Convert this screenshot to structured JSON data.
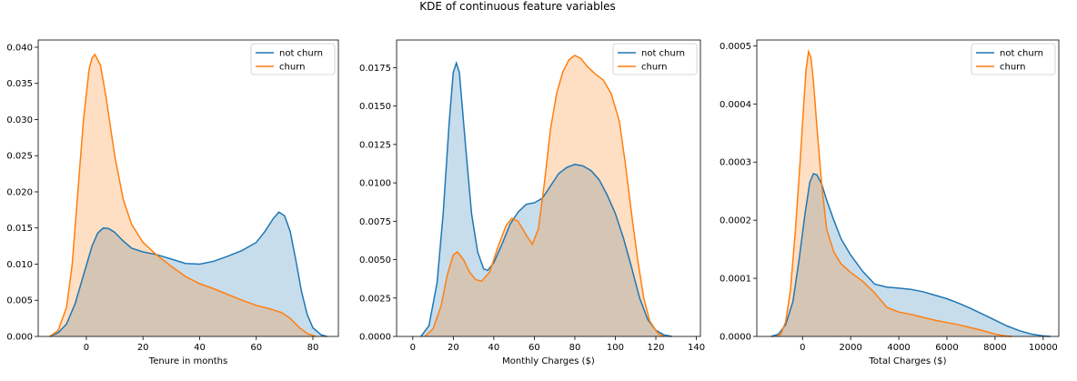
{
  "figure": {
    "title": "KDE of continuous feature variables"
  },
  "chart_data": [
    {
      "type": "area",
      "xlabel": "Tenure in months",
      "ylabel": "",
      "xlim": [
        -17,
        89
      ],
      "ylim": [
        0,
        0.041
      ],
      "xticks": [
        0,
        20,
        40,
        60,
        80
      ],
      "xtick_labels": [
        "0",
        "20",
        "40",
        "60",
        "80"
      ],
      "yticks": [
        0,
        0.005,
        0.01,
        0.015,
        0.02,
        0.025,
        0.03,
        0.035,
        0.04
      ],
      "ytick_labels": [
        "0.000",
        "0.005",
        "0.010",
        "0.015",
        "0.020",
        "0.025",
        "0.030",
        "0.035",
        "0.040"
      ],
      "legend_position": "top-right",
      "series": [
        {
          "name": "not churn",
          "color": "#1f77b4",
          "points": [
            [
              -13,
              0
            ],
            [
              -10,
              0.0005
            ],
            [
              -7,
              0.0017
            ],
            [
              -4,
              0.0045
            ],
            [
              -1,
              0.0085
            ],
            [
              2,
              0.0125
            ],
            [
              4,
              0.0143
            ],
            [
              6,
              0.015
            ],
            [
              8,
              0.0149
            ],
            [
              10,
              0.0144
            ],
            [
              13,
              0.0132
            ],
            [
              16,
              0.0122
            ],
            [
              20,
              0.0117
            ],
            [
              25,
              0.0113
            ],
            [
              30,
              0.0107
            ],
            [
              35,
              0.0101
            ],
            [
              40,
              0.01
            ],
            [
              45,
              0.0104
            ],
            [
              50,
              0.0111
            ],
            [
              55,
              0.0119
            ],
            [
              60,
              0.013
            ],
            [
              63,
              0.0145
            ],
            [
              66,
              0.0163
            ],
            [
              68,
              0.0172
            ],
            [
              70,
              0.0167
            ],
            [
              72,
              0.0145
            ],
            [
              74,
              0.0105
            ],
            [
              76,
              0.0062
            ],
            [
              78,
              0.003
            ],
            [
              80,
              0.0012
            ],
            [
              83,
              0.0002
            ],
            [
              85,
              0
            ]
          ]
        },
        {
          "name": "churn",
          "color": "#ff7f0e",
          "points": [
            [
              -13,
              0
            ],
            [
              -10,
              0.0008
            ],
            [
              -7,
              0.004
            ],
            [
              -5,
              0.01
            ],
            [
              -3,
              0.02
            ],
            [
              -1,
              0.03
            ],
            [
              1,
              0.037
            ],
            [
              2,
              0.0385
            ],
            [
              3,
              0.039
            ],
            [
              5,
              0.0375
            ],
            [
              7,
              0.033
            ],
            [
              10,
              0.025
            ],
            [
              13,
              0.019
            ],
            [
              16,
              0.0155
            ],
            [
              20,
              0.013
            ],
            [
              25,
              0.0112
            ],
            [
              30,
              0.0097
            ],
            [
              35,
              0.0083
            ],
            [
              40,
              0.0073
            ],
            [
              45,
              0.0066
            ],
            [
              50,
              0.0058
            ],
            [
              55,
              0.005
            ],
            [
              60,
              0.0043
            ],
            [
              65,
              0.0038
            ],
            [
              69,
              0.0033
            ],
            [
              72,
              0.0025
            ],
            [
              75,
              0.0013
            ],
            [
              78,
              0.0004
            ],
            [
              81,
              0
            ]
          ]
        }
      ]
    },
    {
      "type": "area",
      "xlabel": "Monthly Charges ($)",
      "ylabel": "",
      "xlim": [
        -8,
        142
      ],
      "ylim": [
        0,
        0.0193
      ],
      "xticks": [
        0,
        20,
        40,
        60,
        80,
        100,
        120,
        140
      ],
      "xtick_labels": [
        "0",
        "20",
        "40",
        "60",
        "80",
        "100",
        "120",
        "140"
      ],
      "yticks": [
        0,
        0.0025,
        0.005,
        0.0075,
        0.01,
        0.0125,
        0.015,
        0.0175
      ],
      "ytick_labels": [
        "0.0000",
        "0.0025",
        "0.0050",
        "0.0075",
        "0.0100",
        "0.0125",
        "0.0150",
        "0.0175"
      ],
      "legend_position": "top-right",
      "series": [
        {
          "name": "not churn",
          "color": "#1f77b4",
          "points": [
            [
              4,
              0
            ],
            [
              8,
              0.0007
            ],
            [
              12,
              0.0035
            ],
            [
              15,
              0.008
            ],
            [
              18,
              0.014
            ],
            [
              20,
              0.0172
            ],
            [
              21.5,
              0.0178
            ],
            [
              23,
              0.0172
            ],
            [
              26,
              0.0125
            ],
            [
              29,
              0.008
            ],
            [
              32,
              0.0055
            ],
            [
              35,
              0.0044
            ],
            [
              37,
              0.0043
            ],
            [
              40,
              0.0048
            ],
            [
              44,
              0.006
            ],
            [
              48,
              0.0073
            ],
            [
              52,
              0.0081
            ],
            [
              56,
              0.0086
            ],
            [
              60,
              0.0087
            ],
            [
              64,
              0.009
            ],
            [
              68,
              0.0098
            ],
            [
              72,
              0.0106
            ],
            [
              76,
              0.011
            ],
            [
              80,
              0.0112
            ],
            [
              84,
              0.0111
            ],
            [
              88,
              0.0108
            ],
            [
              92,
              0.0102
            ],
            [
              96,
              0.0092
            ],
            [
              100,
              0.008
            ],
            [
              104,
              0.0064
            ],
            [
              108,
              0.0045
            ],
            [
              112,
              0.0025
            ],
            [
              116,
              0.0011
            ],
            [
              120,
              0.0004
            ],
            [
              124,
              0.0001
            ],
            [
              128,
              0
            ]
          ]
        },
        {
          "name": "churn",
          "color": "#ff7f0e",
          "points": [
            [
              6,
              0
            ],
            [
              10,
              0.0005
            ],
            [
              14,
              0.002
            ],
            [
              17,
              0.004
            ],
            [
              20,
              0.0053
            ],
            [
              22,
              0.0055
            ],
            [
              25,
              0.005
            ],
            [
              28,
              0.0042
            ],
            [
              31,
              0.0037
            ],
            [
              34,
              0.0036
            ],
            [
              38,
              0.0042
            ],
            [
              42,
              0.0058
            ],
            [
              46,
              0.0072
            ],
            [
              49,
              0.0077
            ],
            [
              52,
              0.0075
            ],
            [
              56,
              0.0066
            ],
            [
              59,
              0.006
            ],
            [
              62,
              0.007
            ],
            [
              65,
              0.01
            ],
            [
              68,
              0.0135
            ],
            [
              71,
              0.0158
            ],
            [
              74,
              0.0172
            ],
            [
              77,
              0.018
            ],
            [
              80,
              0.0183
            ],
            [
              83,
              0.0181
            ],
            [
              86,
              0.0176
            ],
            [
              90,
              0.0171
            ],
            [
              94,
              0.0167
            ],
            [
              98,
              0.0158
            ],
            [
              102,
              0.014
            ],
            [
              105,
              0.0112
            ],
            [
              108,
              0.008
            ],
            [
              111,
              0.005
            ],
            [
              114,
              0.0025
            ],
            [
              117,
              0.001
            ],
            [
              121,
              0.0002
            ],
            [
              124,
              0
            ]
          ]
        }
      ]
    },
    {
      "type": "area",
      "xlabel": "Total Charges ($)",
      "ylabel": "",
      "xlim": [
        -1900,
        10650
      ],
      "ylim": [
        0,
        0.00051
      ],
      "xticks": [
        0,
        2000,
        4000,
        6000,
        8000,
        10000
      ],
      "xtick_labels": [
        "0",
        "2000",
        "4000",
        "6000",
        "8000",
        "10000"
      ],
      "yticks": [
        0,
        0.0001,
        0.0002,
        0.0003,
        0.0004,
        0.0005
      ],
      "ytick_labels": [
        "0.0000",
        "0.0001",
        "0.0002",
        "0.0003",
        "0.0004",
        "0.0005"
      ],
      "legend_position": "top-right",
      "series": [
        {
          "name": "not churn",
          "color": "#1f77b4",
          "points": [
            [
              -1300,
              0
            ],
            [
              -1000,
              4e-06
            ],
            [
              -700,
              2e-05
            ],
            [
              -400,
              6e-05
            ],
            [
              -150,
              0.00013
            ],
            [
              100,
              0.00021
            ],
            [
              300,
              0.000265
            ],
            [
              450,
              0.00028
            ],
            [
              600,
              0.000278
            ],
            [
              800,
              0.000262
            ],
            [
              1000,
              0.000235
            ],
            [
              1300,
              0.0002
            ],
            [
              1600,
              0.000168
            ],
            [
              2000,
              0.00014
            ],
            [
              2500,
              0.000112
            ],
            [
              3000,
              9e-05
            ],
            [
              3500,
              8.5e-05
            ],
            [
              4000,
              8.3e-05
            ],
            [
              4500,
              8.1e-05
            ],
            [
              5000,
              7.7e-05
            ],
            [
              5500,
              7.1e-05
            ],
            [
              6000,
              6.5e-05
            ],
            [
              6500,
              5.7e-05
            ],
            [
              7000,
              4.8e-05
            ],
            [
              7500,
              3.8e-05
            ],
            [
              8000,
              2.8e-05
            ],
            [
              8500,
              1.8e-05
            ],
            [
              9000,
              1e-05
            ],
            [
              9500,
              4e-06
            ],
            [
              10000,
              1e-06
            ],
            [
              10300,
              0
            ]
          ]
        },
        {
          "name": "churn",
          "color": "#ff7f0e",
          "points": [
            [
              -1100,
              0
            ],
            [
              -900,
              4e-06
            ],
            [
              -700,
              2.5e-05
            ],
            [
              -500,
              8e-05
            ],
            [
              -300,
              0.00018
            ],
            [
              -100,
              0.0003
            ],
            [
              50,
              0.0004
            ],
            [
              150,
              0.00046
            ],
            [
              250,
              0.00049
            ],
            [
              350,
              0.00048
            ],
            [
              450,
              0.00044
            ],
            [
              600,
              0.00036
            ],
            [
              800,
              0.00026
            ],
            [
              1000,
              0.000185
            ],
            [
              1300,
              0.000145
            ],
            [
              1600,
              0.000125
            ],
            [
              2000,
              0.00011
            ],
            [
              2500,
              9.5e-05
            ],
            [
              3000,
              7.5e-05
            ],
            [
              3500,
              5e-05
            ],
            [
              4000,
              4.2e-05
            ],
            [
              4500,
              3.8e-05
            ],
            [
              5000,
              3.3e-05
            ],
            [
              5500,
              2.8e-05
            ],
            [
              6000,
              2.4e-05
            ],
            [
              6500,
              2e-05
            ],
            [
              7000,
              1.5e-05
            ],
            [
              7500,
              1e-05
            ],
            [
              8000,
              4e-06
            ],
            [
              8400,
              1e-06
            ],
            [
              8700,
              0
            ]
          ]
        }
      ]
    }
  ]
}
